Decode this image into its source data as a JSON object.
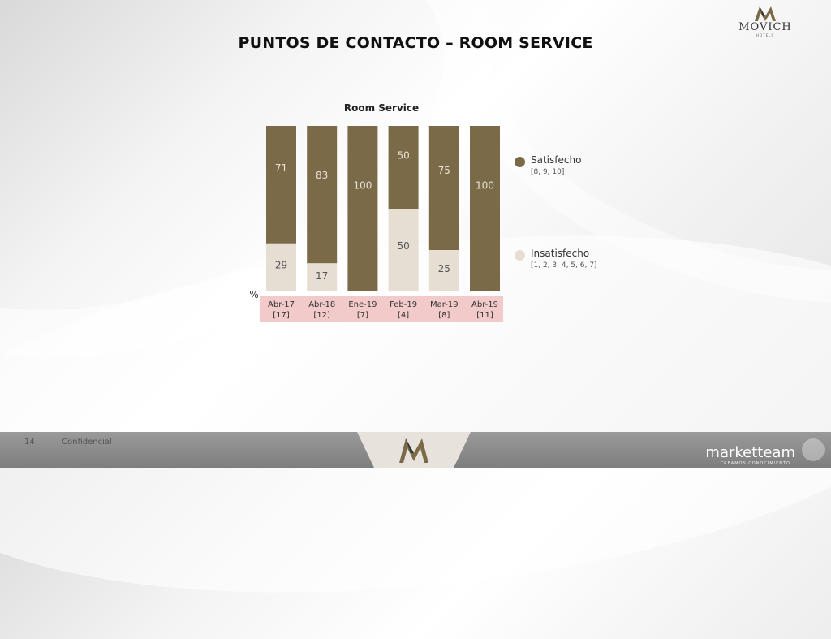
{
  "page": {
    "title": "PUNTOS DE CONTACTO – ROOM SERVICE",
    "page_number": "14",
    "footer_text": "Confidencial"
  },
  "logo": {
    "name": "MOVICH",
    "sub": "HOTELS"
  },
  "footer_logo": {
    "name": "marketteam",
    "tagline": "CREAMOS CONOCIMIENTO"
  },
  "colors": {
    "satisfecho": "#7b6a48",
    "insatisfecho": "#e6ded3",
    "label_band": "#f3caca"
  },
  "chart_data": {
    "type": "bar",
    "stacked": true,
    "title": "Room Service",
    "ylabel": "%",
    "ylim": [
      0,
      100
    ],
    "categories": [
      "Abr-17",
      "Abr-18",
      "Ene-19",
      "Feb-19",
      "Mar-19",
      "Abr-19"
    ],
    "category_counts": [
      "[17]",
      "[12]",
      "[7]",
      "[4]",
      "[8]",
      "[11]"
    ],
    "series": [
      {
        "name": "Satisfecho",
        "codes": "[8, 9, 10]",
        "values": [
          71,
          83,
          100,
          50,
          75,
          100
        ]
      },
      {
        "name": "Insatisfecho",
        "codes": "[1, 2, 3, 4, 5, 6, 7]",
        "values": [
          29,
          17,
          0,
          50,
          25,
          0
        ]
      }
    ]
  }
}
